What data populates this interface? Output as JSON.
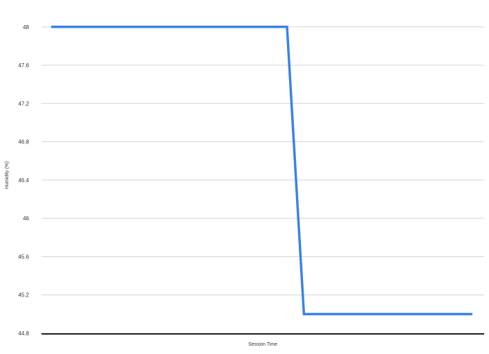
{
  "chart_data": {
    "type": "line",
    "xlabel": "Session Time",
    "ylabel": "Humidity (%)",
    "ylim": [
      44.8,
      48.1
    ],
    "yticks": [
      48,
      47.6,
      47.2,
      46.8,
      46.4,
      46,
      45.6,
      45.2,
      44.8
    ],
    "ytick_labels": [
      "48",
      "47.6",
      "47.2",
      "46.8",
      "46.4",
      "46",
      "45.6",
      "45.2",
      "44.8"
    ],
    "xticks": [],
    "grid": true,
    "series": [
      {
        "color": "#3b82e6",
        "x": [
          0,
          0.56,
          0.6,
          1.0
        ],
        "y": [
          48,
          48,
          45,
          45
        ]
      }
    ]
  }
}
